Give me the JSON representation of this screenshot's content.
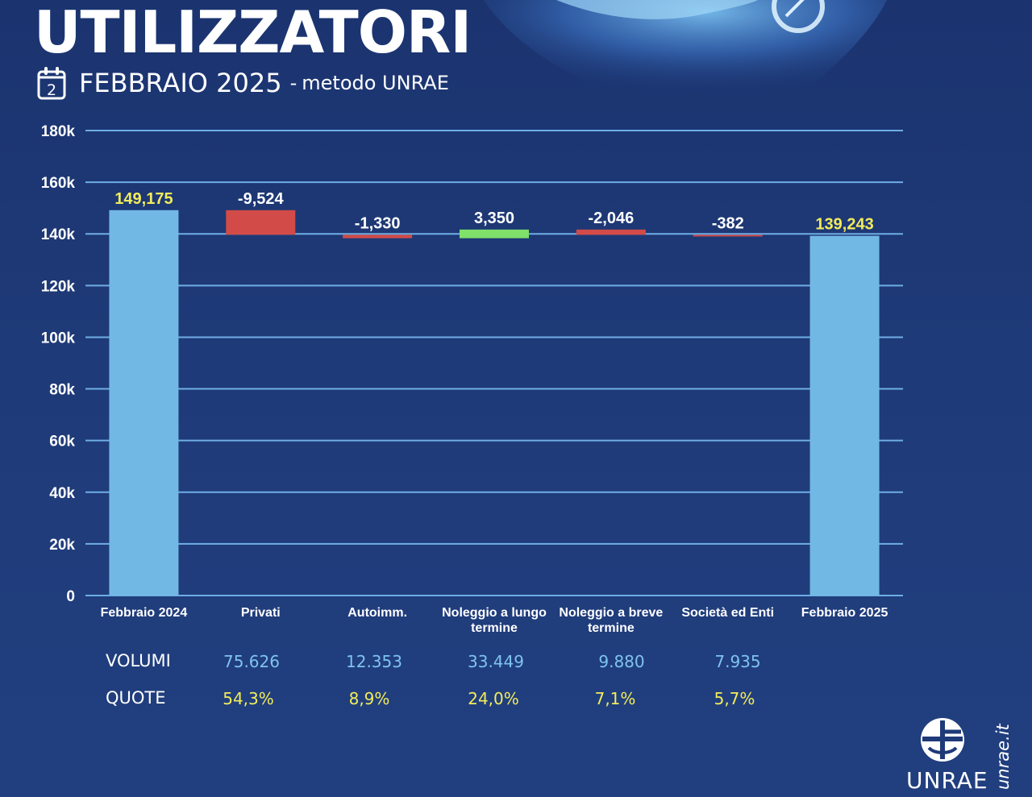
{
  "header": {
    "title": "UTILIZZATORI",
    "calendar_day": "2",
    "subtitle_main": "FEBBRAIO 2025",
    "subtitle_separator": "-",
    "subtitle_method": "metodo UNRAE"
  },
  "colors": {
    "background": "#1f3a78",
    "total_bar": "#72b8e4",
    "decrease_bar": "#d24b48",
    "increase_bar": "#7fe06a",
    "gridline": "#6faee6",
    "total_label": "#f2ec5a",
    "delta_label": "#ffffff",
    "volume_text": "#7fc3ef",
    "share_text": "#f2ec5a"
  },
  "chart_data": {
    "type": "bar",
    "subtype": "waterfall",
    "title": "UTILIZZATORI",
    "subtitle": "FEBBRAIO 2025 - metodo UNRAE",
    "categories": [
      [
        "Febbraio 2024"
      ],
      [
        "Privati"
      ],
      [
        "Autoimm."
      ],
      [
        "Noleggio a lungo",
        "termine"
      ],
      [
        "Noleggio a breve",
        "termine"
      ],
      [
        "Società ed Enti"
      ],
      [
        "Febbraio 2025"
      ]
    ],
    "values": [
      149175,
      -9524,
      -1330,
      3350,
      -2046,
      -382,
      139243
    ],
    "data_labels": [
      "149,175",
      "-9,524",
      "-1,330",
      "3,350",
      "-2,046",
      "-382",
      "139,243"
    ],
    "kinds": [
      "total",
      "delta",
      "delta",
      "delta",
      "delta",
      "delta",
      "total"
    ],
    "ylim": [
      0,
      180000
    ],
    "yticks": [
      0,
      20000,
      40000,
      60000,
      80000,
      100000,
      120000,
      140000,
      160000,
      180000
    ],
    "ytick_labels": [
      "0",
      "20k",
      "40k",
      "60k",
      "80k",
      "100k",
      "120k",
      "140k",
      "160k",
      "180k"
    ],
    "xlabel": "",
    "ylabel": "",
    "grid": true,
    "legend": "none"
  },
  "table": {
    "volumes_label": "VOLUMI",
    "shares_label": "QUOTE",
    "volumes": [
      "75.626",
      "12.353",
      "33.449",
      "9.880",
      "7.935"
    ],
    "shares": [
      "54,3%",
      "8,9%",
      "24,0%",
      "7,1%",
      "5,7%"
    ]
  },
  "branding": {
    "logo_text": "UNRAE",
    "website": "unrae.it"
  }
}
